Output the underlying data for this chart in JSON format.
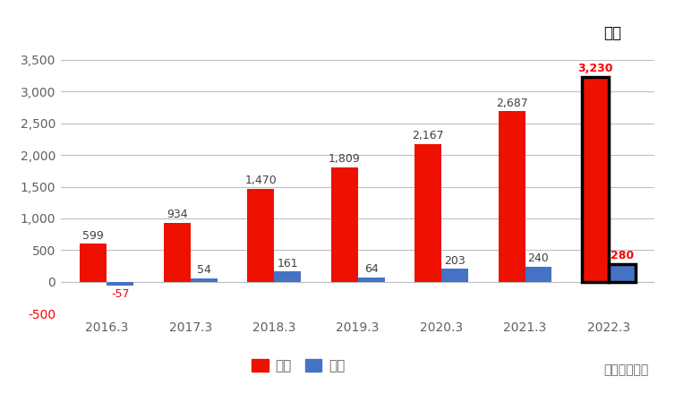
{
  "categories": [
    "2016.3",
    "2017.3",
    "2018.3",
    "2019.3",
    "2020.3",
    "2021.3",
    "2022.3"
  ],
  "sales": [
    599,
    934,
    1470,
    1809,
    2167,
    2687,
    3230
  ],
  "operating": [
    -57,
    54,
    161,
    64,
    203,
    240,
    280
  ],
  "sales_color": "#EE1100",
  "operating_color": "#4472C4",
  "forecast_index": 6,
  "ylim": [
    -500,
    4000
  ],
  "yticks": [
    -500,
    0,
    500,
    1000,
    1500,
    2000,
    2500,
    3000,
    3500
  ],
  "background_color": "#FFFFFF",
  "plot_bg_color": "#FFFFFF",
  "legend_labels": [
    "尌上",
    "経常"
  ],
  "unit_text": "単位：百万円",
  "forecast_text": "予想",
  "bar_width": 0.32,
  "grid_color": "#C0C0C0",
  "axis_label_color": "#606060",
  "value_label_color": "#404040",
  "forecast_value_color": "#FF0000",
  "neg_value_color": "#FF0000"
}
